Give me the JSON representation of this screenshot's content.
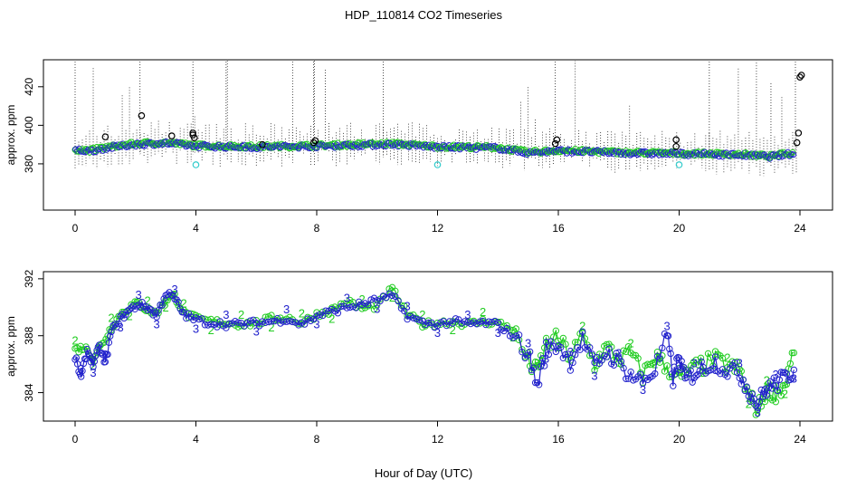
{
  "page": {
    "title": "HDP_110814  CO2 Timeseries",
    "xlabel": "Hour of Day (UTC)"
  },
  "colors": {
    "raw": "#000000",
    "series2": "#22cc22",
    "series3": "#2222cc",
    "flag": "#33cccc"
  },
  "chart_data": [
    {
      "type": "scatter",
      "ylabel": "approx. ppm",
      "xlim": [
        0,
        24
      ],
      "ylim": [
        356,
        434
      ],
      "xticks": [
        "0",
        "4",
        "8",
        "12",
        "16",
        "20",
        "24"
      ],
      "xtick_values": [
        0,
        4,
        8,
        12,
        16,
        20,
        24
      ],
      "yticks": [
        "380",
        "400",
        "420"
      ],
      "ytick_values": [
        380,
        400,
        420
      ],
      "grid": false,
      "legend": "none",
      "series_shape": [
        {
          "x": 0.0,
          "y": 387.5
        },
        {
          "x": 0.5,
          "y": 387.0
        },
        {
          "x": 1.0,
          "y": 388.5
        },
        {
          "x": 2.0,
          "y": 390.5
        },
        {
          "x": 3.0,
          "y": 391.0
        },
        {
          "x": 4.0,
          "y": 389.5
        },
        {
          "x": 6.0,
          "y": 389.0
        },
        {
          "x": 8.0,
          "y": 389.5
        },
        {
          "x": 10.5,
          "y": 390.5
        },
        {
          "x": 12.0,
          "y": 389.0
        },
        {
          "x": 14.0,
          "y": 388.5
        },
        {
          "x": 15.0,
          "y": 386.0
        },
        {
          "x": 16.0,
          "y": 387.0
        },
        {
          "x": 18.0,
          "y": 386.0
        },
        {
          "x": 20.0,
          "y": 385.5
        },
        {
          "x": 22.0,
          "y": 385.0
        },
        {
          "x": 23.0,
          "y": 384.0
        },
        {
          "x": 23.7,
          "y": 385.5
        }
      ],
      "outliers": [
        {
          "x": 1.0,
          "y": 394
        },
        {
          "x": 2.2,
          "y": 405
        },
        {
          "x": 3.2,
          "y": 394.5
        },
        {
          "x": 3.9,
          "y": 396
        },
        {
          "x": 3.9,
          "y": 395
        },
        {
          "x": 3.95,
          "y": 393.5
        },
        {
          "x": 6.2,
          "y": 390
        },
        {
          "x": 7.9,
          "y": 391
        },
        {
          "x": 7.95,
          "y": 392
        },
        {
          "x": 15.9,
          "y": 390.5
        },
        {
          "x": 15.95,
          "y": 392.5
        },
        {
          "x": 19.9,
          "y": 392.5
        },
        {
          "x": 19.9,
          "y": 389
        },
        {
          "x": 23.9,
          "y": 391
        },
        {
          "x": 23.95,
          "y": 396
        },
        {
          "x": 24.0,
          "y": 425
        },
        {
          "x": 24.05,
          "y": 426
        }
      ],
      "flagged": [
        {
          "x": 4.0,
          "y": 379.5
        },
        {
          "x": 12.0,
          "y": 379.5
        },
        {
          "x": 20.0,
          "y": 379.5
        }
      ]
    },
    {
      "type": "line",
      "ylabel": "approx. ppm",
      "xlim": [
        0,
        24
      ],
      "ylim": [
        382,
        392.5
      ],
      "xticks": [
        "0",
        "4",
        "8",
        "12",
        "16",
        "20",
        "24"
      ],
      "xtick_values": [
        0,
        4,
        8,
        12,
        16,
        20,
        24
      ],
      "yticks": [
        "384",
        "388",
        "392"
      ],
      "ytick_values": [
        384,
        388,
        392
      ],
      "grid": false,
      "legend": "none",
      "series": [
        {
          "label": "2",
          "x": [
            0.0,
            0.3,
            0.6,
            0.9,
            1.2,
            1.5,
            1.8,
            2.1,
            2.4,
            2.7,
            3.0,
            3.3,
            3.6,
            4.0,
            4.5,
            5.0,
            5.5,
            6.0,
            6.5,
            7.0,
            7.5,
            8.0,
            8.5,
            9.0,
            9.5,
            10.0,
            10.5,
            11.0,
            11.5,
            12.0,
            12.5,
            13.0,
            13.5,
            14.0,
            14.5,
            15.0,
            15.3,
            15.6,
            16.0,
            16.4,
            16.8,
            17.2,
            17.6,
            18.0,
            18.4,
            18.8,
            19.2,
            19.6,
            20.0,
            20.4,
            20.8,
            21.2,
            21.6,
            22.0,
            22.3,
            22.6,
            22.9,
            23.2,
            23.5,
            23.8
          ],
          "y": [
            387.0,
            387.2,
            386.5,
            387.4,
            388.6,
            389.5,
            390.0,
            390.3,
            389.8,
            389.6,
            390.6,
            390.8,
            389.6,
            389.2,
            389.0,
            388.9,
            388.8,
            388.9,
            389.2,
            389.3,
            388.9,
            389.5,
            389.8,
            390.4,
            389.9,
            390.1,
            391.3,
            389.5,
            388.8,
            388.9,
            389.0,
            388.8,
            389.0,
            388.9,
            388.5,
            386.2,
            385.4,
            387.4,
            387.8,
            386.5,
            388.0,
            386.0,
            387.2,
            386.3,
            386.8,
            385.2,
            386.6,
            385.8,
            385.0,
            385.6,
            386.0,
            386.3,
            385.8,
            385.6,
            383.8,
            382.8,
            384.2,
            384.0,
            384.5,
            386.8
          ]
        },
        {
          "label": "3",
          "x": [
            0.0,
            0.2,
            0.4,
            0.6,
            0.8,
            1.0,
            1.2,
            1.5,
            1.8,
            2.1,
            2.4,
            2.7,
            3.0,
            3.3,
            3.6,
            4.0,
            4.5,
            5.0,
            5.5,
            6.0,
            6.5,
            7.0,
            7.5,
            8.0,
            8.5,
            9.0,
            9.5,
            10.0,
            10.5,
            11.0,
            11.5,
            12.0,
            12.5,
            13.0,
            13.5,
            14.0,
            14.5,
            15.0,
            15.3,
            15.6,
            16.0,
            16.4,
            16.8,
            17.2,
            17.6,
            18.0,
            18.4,
            18.8,
            19.2,
            19.6,
            19.8,
            20.0,
            20.2,
            20.5,
            20.8,
            21.2,
            21.6,
            22.0,
            22.3,
            22.6,
            22.9,
            23.2,
            23.5,
            23.8
          ],
          "y": [
            386.5,
            385.0,
            387.0,
            386.0,
            387.2,
            386.0,
            388.3,
            389.2,
            389.8,
            390.2,
            390.0,
            389.4,
            391.0,
            390.6,
            389.5,
            389.1,
            388.9,
            388.8,
            388.8,
            388.9,
            389.0,
            389.2,
            388.8,
            389.4,
            389.7,
            390.0,
            390.2,
            390.5,
            390.8,
            389.4,
            388.9,
            388.8,
            389.0,
            388.8,
            388.9,
            388.8,
            388.0,
            386.8,
            384.5,
            387.0,
            387.4,
            386.2,
            387.8,
            385.8,
            386.9,
            386.1,
            385.2,
            384.8,
            385.6,
            388.0,
            385.0,
            386.5,
            384.8,
            385.4,
            385.8,
            386.2,
            385.6,
            385.4,
            384.2,
            383.2,
            384.3,
            384.6,
            385.0,
            385.6
          ]
        }
      ]
    }
  ]
}
